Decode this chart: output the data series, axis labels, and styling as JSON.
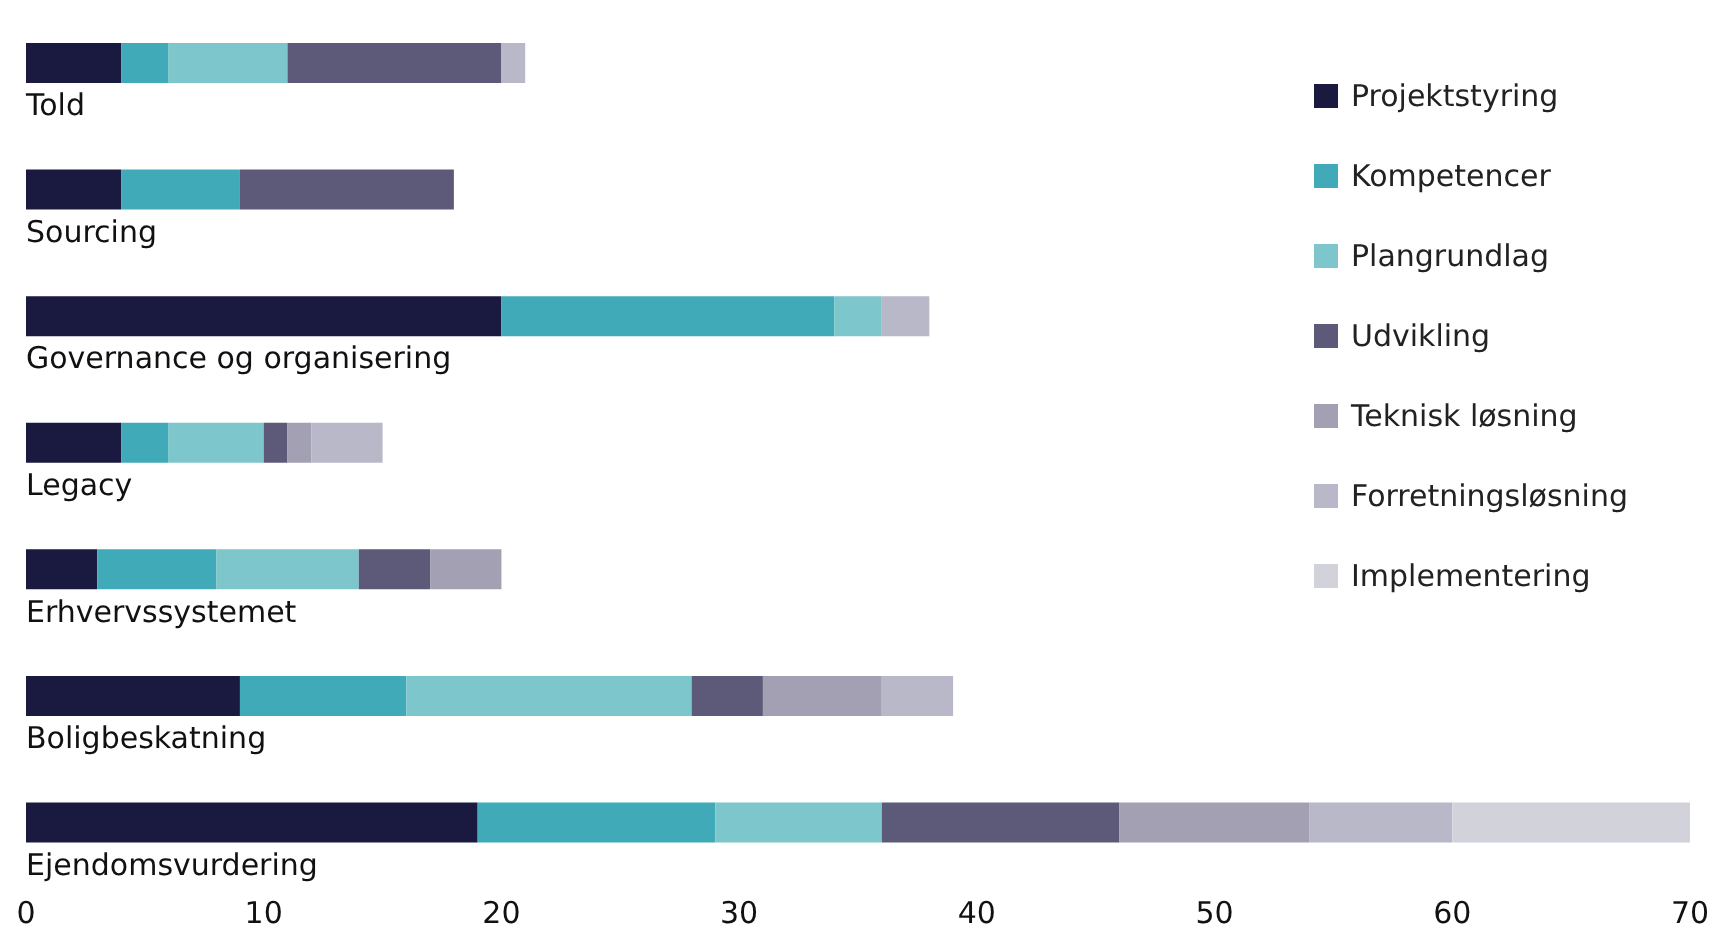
{
  "chart_data": {
    "type": "bar",
    "orientation": "horizontal",
    "stacked": true,
    "categories": [
      "Told",
      "Sourcing",
      "Governance og organisering",
      "Legacy",
      "Erhvervssystemet",
      "Boligbeskatning",
      "Ejendomsvurdering"
    ],
    "series": [
      {
        "name": "Projektstyring",
        "color": "#1a1a40",
        "values": [
          4,
          4,
          20,
          4,
          3,
          9,
          19
        ]
      },
      {
        "name": "Kompetencer",
        "color": "#41aab8",
        "values": [
          2,
          5,
          14,
          2,
          5,
          7,
          10
        ]
      },
      {
        "name": "Plangrundlag",
        "color": "#7cc6cc",
        "values": [
          5,
          0,
          2,
          4,
          6,
          12,
          7
        ]
      },
      {
        "name": "Udvikling",
        "color": "#5c5a78",
        "values": [
          9,
          9,
          0,
          1,
          3,
          3,
          10
        ]
      },
      {
        "name": "Teknisk løsning",
        "color": "#a2a0b2",
        "values": [
          0,
          0,
          0,
          1,
          3,
          5,
          8
        ]
      },
      {
        "name": "Forretningsløsning",
        "color": "#b8b8c8",
        "values": [
          1,
          0,
          2,
          3,
          0,
          3,
          6
        ]
      },
      {
        "name": "Implementering",
        "color": "#d2d2da",
        "values": [
          0,
          0,
          0,
          0,
          0,
          0,
          10
        ]
      }
    ],
    "xlim": [
      0,
      70
    ],
    "xticks": [
      0,
      10,
      20,
      30,
      40,
      50,
      60,
      70
    ],
    "grid": false,
    "legend": "top right"
  }
}
